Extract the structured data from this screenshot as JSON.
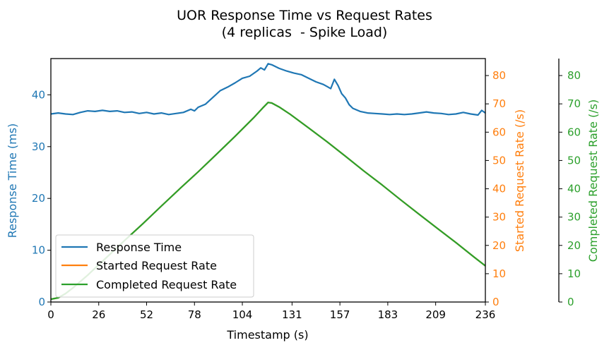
{
  "chart_data": {
    "type": "line",
    "title": "UOR Response Time vs Request Rates",
    "subtitle": "(4 replicas  - Spike Load)",
    "xlabel": "Timestamp (s)",
    "xlim": [
      0,
      236
    ],
    "xticks": [
      0,
      26,
      52,
      78,
      104,
      131,
      157,
      183,
      209,
      236
    ],
    "axes": {
      "left": {
        "label": "Response Time (ms)",
        "ylim": [
          0,
          47
        ],
        "ticks": [
          0,
          10,
          20,
          30,
          40
        ],
        "color": "#1f77b4"
      },
      "right1": {
        "label": "Started Request Rate (/s)",
        "ylim": [
          0,
          86
        ],
        "ticks": [
          0,
          10,
          20,
          30,
          40,
          50,
          60,
          70,
          80
        ],
        "color": "#ff7f0e"
      },
      "right2": {
        "label": "Completed Request Rate (/s)",
        "ylim": [
          0,
          86
        ],
        "ticks": [
          0,
          10,
          20,
          30,
          40,
          50,
          60,
          70,
          80
        ],
        "color": "#2ca02c"
      }
    },
    "legend": {
      "position": "lower-left",
      "entries": [
        "Response Time",
        "Started Request Rate",
        "Completed Request Rate"
      ]
    },
    "series": [
      {
        "name": "Response Time",
        "axis": "left",
        "color": "#1f77b4",
        "x": [
          0,
          4,
          8,
          12,
          16,
          20,
          24,
          28,
          32,
          36,
          40,
          44,
          48,
          52,
          56,
          60,
          64,
          68,
          72,
          76,
          78,
          80,
          84,
          88,
          92,
          96,
          100,
          104,
          108,
          112,
          114,
          116,
          118,
          120,
          124,
          128,
          132,
          136,
          140,
          144,
          148,
          150,
          152,
          154,
          156,
          158,
          160,
          162,
          164,
          168,
          172,
          176,
          180,
          184,
          188,
          192,
          196,
          200,
          204,
          208,
          212,
          216,
          220,
          224,
          228,
          232,
          234,
          236
        ],
        "y": [
          36.3,
          36.5,
          36.3,
          36.2,
          36.6,
          36.9,
          36.8,
          37.0,
          36.8,
          36.9,
          36.6,
          36.7,
          36.4,
          36.6,
          36.3,
          36.5,
          36.2,
          36.4,
          36.6,
          37.2,
          36.9,
          37.6,
          38.2,
          39.5,
          40.8,
          41.5,
          42.3,
          43.2,
          43.6,
          44.6,
          45.2,
          44.8,
          46.0,
          45.8,
          45.1,
          44.6,
          44.2,
          43.9,
          43.2,
          42.5,
          42.0,
          41.6,
          41.2,
          43.0,
          41.8,
          40.2,
          39.4,
          38.1,
          37.4,
          36.8,
          36.5,
          36.4,
          36.3,
          36.2,
          36.3,
          36.2,
          36.3,
          36.5,
          36.7,
          36.5,
          36.4,
          36.2,
          36.3,
          36.6,
          36.3,
          36.1,
          37.0,
          36.5
        ]
      },
      {
        "name": "Started Request Rate",
        "axis": "right1",
        "color": "#ff7f0e",
        "x": [
          0,
          4,
          8,
          12,
          20,
          30,
          40,
          50,
          60,
          70,
          80,
          90,
          100,
          110,
          115,
          118,
          120,
          124,
          130,
          140,
          150,
          160,
          170,
          180,
          190,
          200,
          210,
          220,
          230,
          236
        ],
        "y": [
          1.0,
          1.5,
          3.0,
          5.0,
          9.5,
          15.6,
          21.7,
          27.7,
          33.9,
          40.0,
          46.0,
          52.2,
          58.5,
          65.0,
          68.5,
          70.5,
          70.3,
          68.9,
          66.3,
          61.5,
          56.6,
          51.5,
          46.3,
          41.3,
          36.1,
          31.0,
          26.0,
          21.0,
          15.8,
          12.8
        ]
      },
      {
        "name": "Completed Request Rate",
        "axis": "right2",
        "color": "#2ca02c",
        "x": [
          0,
          4,
          8,
          12,
          20,
          30,
          40,
          50,
          60,
          70,
          80,
          90,
          100,
          110,
          115,
          118,
          120,
          124,
          130,
          140,
          150,
          160,
          170,
          180,
          190,
          200,
          210,
          220,
          230,
          236
        ],
        "y": [
          1.0,
          1.5,
          3.0,
          5.0,
          9.5,
          15.6,
          21.7,
          27.7,
          33.9,
          40.0,
          46.0,
          52.2,
          58.5,
          65.0,
          68.5,
          70.5,
          70.3,
          68.9,
          66.3,
          61.5,
          56.6,
          51.5,
          46.3,
          41.3,
          36.1,
          31.0,
          26.0,
          21.0,
          15.8,
          12.8
        ]
      }
    ]
  }
}
